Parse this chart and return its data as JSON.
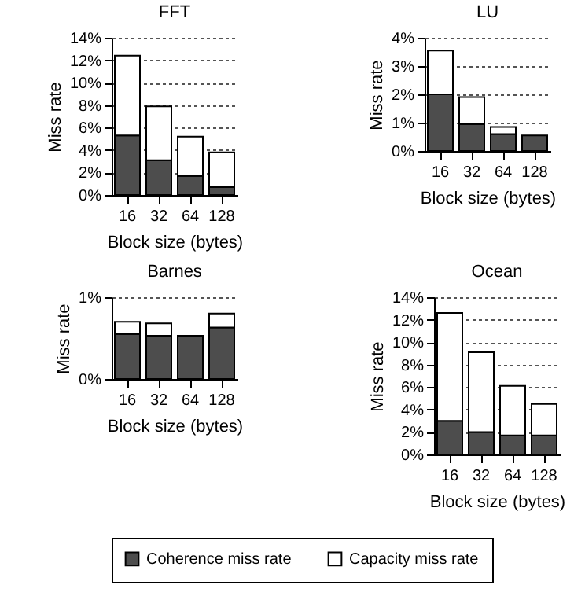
{
  "chart_data": [
    {
      "type": "bar",
      "title": "FFT",
      "xlabel": "Block size (bytes)",
      "ylabel": "Miss rate",
      "categories": [
        "16",
        "32",
        "64",
        "128"
      ],
      "stacked": true,
      "grid": "y",
      "legend": "bottom",
      "ylim": [
        0,
        14
      ],
      "yticks": [
        {
          "value": 0,
          "label": "0%"
        },
        {
          "value": 2,
          "label": "2%"
        },
        {
          "value": 4,
          "label": "4%"
        },
        {
          "value": 6,
          "label": "6%"
        },
        {
          "value": 8,
          "label": "8%"
        },
        {
          "value": 10,
          "label": "10%"
        },
        {
          "value": 12,
          "label": "12%"
        },
        {
          "value": 14,
          "label": "14%"
        }
      ],
      "series": [
        {
          "name": "Coherence miss rate",
          "color": "#4d4d4d",
          "values": [
            5.3,
            3.1,
            1.7,
            0.7
          ]
        },
        {
          "name": "Capacity miss rate",
          "color": "#ffffff",
          "values": [
            7.1,
            4.8,
            3.5,
            3.1
          ]
        }
      ]
    },
    {
      "type": "bar",
      "title": "LU",
      "xlabel": "Block size (bytes)",
      "ylabel": "Miss rate",
      "categories": [
        "16",
        "32",
        "64",
        "128"
      ],
      "stacked": true,
      "grid": "y",
      "legend": "bottom",
      "ylim": [
        0,
        4
      ],
      "yticks": [
        {
          "value": 0,
          "label": "0%"
        },
        {
          "value": 1,
          "label": "1%"
        },
        {
          "value": 2,
          "label": "2%"
        },
        {
          "value": 3,
          "label": "3%"
        },
        {
          "value": 4,
          "label": "4%"
        }
      ],
      "series": [
        {
          "name": "Coherence miss rate",
          "color": "#4d4d4d",
          "values": [
            2.0,
            0.95,
            0.6,
            0.55
          ]
        },
        {
          "name": "Capacity miss rate",
          "color": "#ffffff",
          "values": [
            1.55,
            0.95,
            0.25,
            0
          ]
        }
      ]
    },
    {
      "type": "bar",
      "title": "Barnes",
      "xlabel": "Block size (bytes)",
      "ylabel": "Miss rate",
      "categories": [
        "16",
        "32",
        "64",
        "128"
      ],
      "stacked": true,
      "grid": "y",
      "legend": "bottom",
      "ylim": [
        0,
        1
      ],
      "yticks": [
        {
          "value": 0,
          "label": "0%"
        },
        {
          "value": 1,
          "label": "1%"
        }
      ],
      "series": [
        {
          "name": "Coherence miss rate",
          "color": "#4d4d4d",
          "values": [
            0.55,
            0.53,
            0.53,
            0.63
          ]
        },
        {
          "name": "Capacity miss rate",
          "color": "#ffffff",
          "values": [
            0.15,
            0.15,
            0,
            0.17
          ]
        }
      ]
    },
    {
      "type": "bar",
      "title": "Ocean",
      "xlabel": "Block size (bytes)",
      "ylabel": "Miss rate",
      "categories": [
        "16",
        "32",
        "64",
        "128"
      ],
      "stacked": true,
      "grid": "y",
      "legend": "bottom",
      "ylim": [
        0,
        14
      ],
      "yticks": [
        {
          "value": 0,
          "label": "0%"
        },
        {
          "value": 2,
          "label": "2%"
        },
        {
          "value": 4,
          "label": "4%"
        },
        {
          "value": 6,
          "label": "6%"
        },
        {
          "value": 8,
          "label": "8%"
        },
        {
          "value": 10,
          "label": "10%"
        },
        {
          "value": 12,
          "label": "12%"
        },
        {
          "value": 14,
          "label": "14%"
        }
      ],
      "series": [
        {
          "name": "Coherence miss rate",
          "color": "#4d4d4d",
          "values": [
            3.0,
            2.0,
            1.7,
            1.7
          ]
        },
        {
          "name": "Capacity miss rate",
          "color": "#ffffff",
          "values": [
            9.6,
            7.1,
            4.4,
            2.8
          ]
        }
      ]
    }
  ]
}
